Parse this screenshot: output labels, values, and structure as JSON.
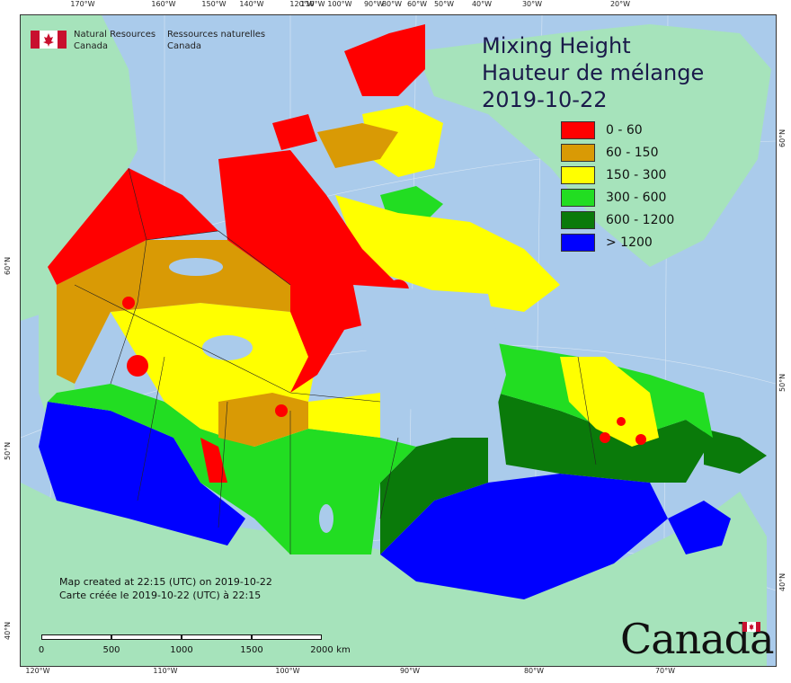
{
  "agency": {
    "name_en_line1": "Natural Resources",
    "name_en_line2": "Canada",
    "name_fr_line1": "Ressources naturelles",
    "name_fr_line2": "Canada"
  },
  "title": {
    "line1": "Mixing Height",
    "line2": "Hauteur de mélange",
    "date": "2019-10-22"
  },
  "legend": [
    {
      "label": "0 - 60",
      "color": "#ff0000"
    },
    {
      "label": "60 - 150",
      "color": "#d99a05"
    },
    {
      "label": "150 - 300",
      "color": "#ffff00"
    },
    {
      "label": "300 - 600",
      "color": "#22dd22"
    },
    {
      "label": "600 - 1200",
      "color": "#0a7a0a"
    },
    {
      "label": "> 1200",
      "color": "#0000ff"
    }
  ],
  "credit": {
    "line_en": "Map created at 22:15 (UTC) on 2019-10-22",
    "line_fr": "Carte créée le 2019-10-22 (UTC) à 22:15"
  },
  "scale": {
    "labels": [
      "0",
      "500",
      "1000",
      "1500",
      "2000"
    ],
    "unit": "km"
  },
  "top_ticks": [
    "170°W",
    "160°W",
    "150°W",
    "140°W",
    "120°W",
    "110°W",
    "100°W",
    "90°W",
    "80°W",
    "60°W",
    "50°W",
    "40°W",
    "30°W",
    "20°W"
  ],
  "bottom_ticks": [
    "120°W",
    "110°W",
    "100°W",
    "90°W",
    "80°W",
    "70°W"
  ],
  "left_ticks": [
    "60°N",
    "50°N",
    "40°N"
  ],
  "right_ticks": [
    "60°N",
    "50°N",
    "40°N"
  ],
  "wordmark": "Canada",
  "colors": {
    "water": "#aacbeb",
    "land_outside": "#a6e3bb"
  }
}
